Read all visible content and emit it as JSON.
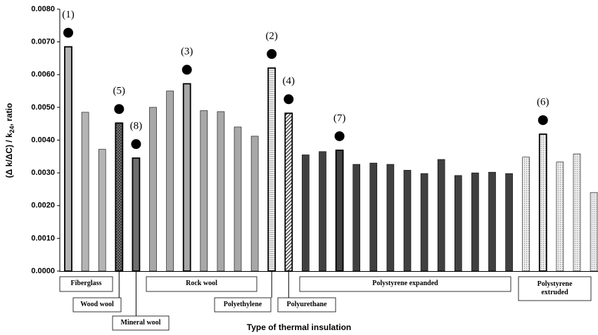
{
  "chart_data": {
    "type": "bar",
    "x_label": "Type of thermal insulation",
    "y_label": {
      "main": "(Δ k/ΔC) / k",
      "sub": "24",
      "tail": ", ratio"
    },
    "ylim": [
      0,
      0.008
    ],
    "yticks": [
      {
        "value": 0,
        "label": "0.0000"
      },
      {
        "value": 0.001,
        "label": "0.0010"
      },
      {
        "value": 0.002,
        "label": "0.0020"
      },
      {
        "value": 0.003,
        "label": "0.0030"
      },
      {
        "value": 0.004,
        "label": "0.0040"
      },
      {
        "value": 0.005,
        "label": "0.0050"
      },
      {
        "value": 0.006,
        "label": "0.0060"
      },
      {
        "value": 0.007,
        "label": "0.0070"
      },
      {
        "value": 0.008,
        "label": "0.0080"
      }
    ],
    "grid": false,
    "series": [
      {
        "name": "Fiberglass",
        "color": "#b4b4b4",
        "pattern": "solid",
        "values": [
          0.00685,
          0.00485,
          0.00372,
          null,
          null,
          null,
          null,
          null,
          null,
          null,
          null,
          null,
          null,
          null,
          null,
          null,
          null,
          null,
          null,
          null,
          null,
          null,
          null,
          null,
          null,
          null,
          null,
          null,
          null,
          null,
          null,
          null
        ]
      },
      {
        "name": "Wood wool",
        "color": "#6a6a6a",
        "pattern": "crosshatch",
        "values": [
          null,
          null,
          null,
          0.00452,
          null,
          null,
          null,
          null,
          null,
          null,
          null,
          null,
          null,
          null,
          null,
          null,
          null,
          null,
          null,
          null,
          null,
          null,
          null,
          null,
          null,
          null,
          null,
          null,
          null,
          null,
          null,
          null
        ]
      },
      {
        "name": "Mineral wool",
        "color": "#6e6e6e",
        "pattern": "solid",
        "values": [
          null,
          null,
          null,
          null,
          0.00345,
          null,
          null,
          null,
          null,
          null,
          null,
          null,
          null,
          null,
          null,
          null,
          null,
          null,
          null,
          null,
          null,
          null,
          null,
          null,
          null,
          null,
          null,
          null,
          null,
          null,
          null,
          null
        ]
      },
      {
        "name": "Rock wool",
        "color": "#a8a8a8",
        "pattern": "solid",
        "values": [
          null,
          null,
          null,
          null,
          null,
          0.005,
          0.0055,
          0.00572,
          0.0049,
          0.00487,
          0.0044,
          0.00412,
          null,
          null,
          null,
          null,
          null,
          null,
          null,
          null,
          null,
          null,
          null,
          null,
          null,
          null,
          null,
          null,
          null,
          null,
          null,
          null
        ]
      },
      {
        "name": "Polyethylene",
        "color": "#888888",
        "pattern": "hlines",
        "values": [
          null,
          null,
          null,
          null,
          null,
          null,
          null,
          null,
          null,
          null,
          null,
          null,
          0.0062,
          null,
          null,
          null,
          null,
          null,
          null,
          null,
          null,
          null,
          null,
          null,
          null,
          null,
          null,
          null,
          null,
          null,
          null,
          null
        ]
      },
      {
        "name": "Polyurethane",
        "color": "#333333",
        "pattern": "diagonal",
        "values": [
          null,
          null,
          null,
          null,
          null,
          null,
          null,
          null,
          null,
          null,
          null,
          null,
          null,
          0.00482,
          null,
          null,
          null,
          null,
          null,
          null,
          null,
          null,
          null,
          null,
          null,
          null,
          null,
          null,
          null,
          null,
          null,
          null
        ]
      },
      {
        "name": "Polystyrene expanded",
        "color": "#404040",
        "pattern": "solid",
        "values": [
          null,
          null,
          null,
          null,
          null,
          null,
          null,
          null,
          null,
          null,
          null,
          null,
          null,
          null,
          0.00355,
          0.00365,
          0.00369,
          0.00326,
          0.0033,
          0.00326,
          0.00308,
          0.00298,
          0.00341,
          0.00292,
          0.003,
          0.00302,
          0.00298,
          null,
          null,
          null,
          null,
          null
        ]
      },
      {
        "name": "Polystyrene extruded",
        "color": "#cfcfcf",
        "pattern": "dots",
        "values": [
          null,
          null,
          null,
          null,
          null,
          null,
          null,
          null,
          null,
          null,
          null,
          null,
          null,
          null,
          null,
          null,
          null,
          null,
          null,
          null,
          null,
          null,
          null,
          null,
          null,
          null,
          null,
          0.00348,
          0.00418,
          0.00333,
          0.00358,
          0.0024
        ]
      }
    ],
    "markers": [
      "(1)",
      null,
      null,
      "(5)",
      "(8)",
      null,
      null,
      "(3)",
      null,
      null,
      null,
      null,
      "(2)",
      "(4)",
      null,
      null,
      "(7)",
      null,
      null,
      null,
      null,
      null,
      null,
      null,
      null,
      null,
      null,
      null,
      "(6)",
      null,
      null,
      null
    ]
  }
}
